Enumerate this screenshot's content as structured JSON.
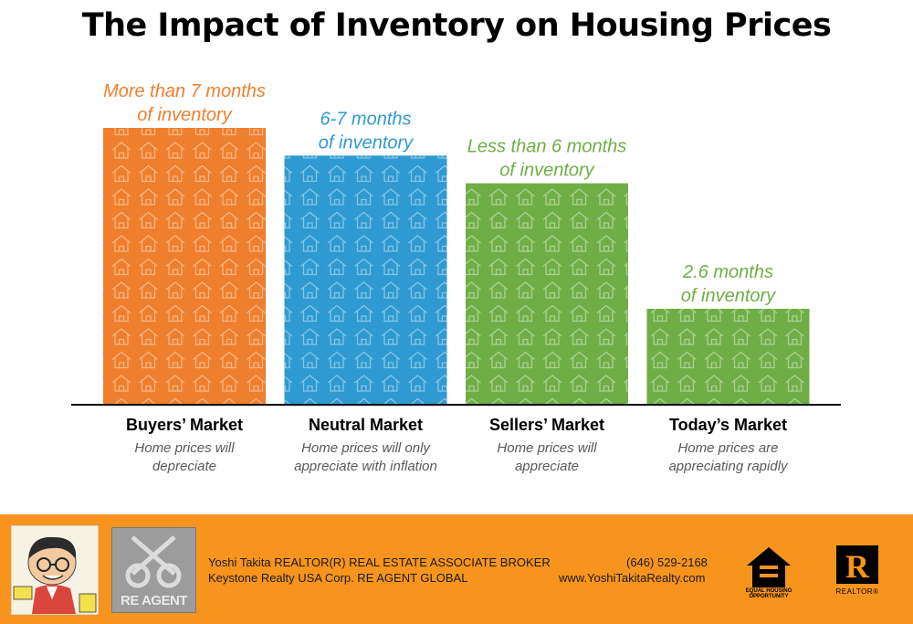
{
  "title": "The Impact of Inventory on Housing Prices",
  "chart_data": {
    "type": "bar",
    "title": "The Impact of Inventory on Housing Prices",
    "categories": [
      "Buyers’ Market",
      "Neutral Market",
      "Sellers’ Market",
      "Today’s Market"
    ],
    "values": [
      7.5,
      6.75,
      6.0,
      2.6
    ],
    "value_unit": "months of inventory",
    "ylim": [
      0,
      7.5
    ],
    "grid": false,
    "bar_labels": [
      [
        "More than 7 months",
        "of inventory"
      ],
      [
        "6-7 months",
        "of inventory"
      ],
      [
        "Less than 6 months",
        "of inventory"
      ],
      [
        "2.6 months",
        "of inventory"
      ]
    ],
    "descriptions": [
      [
        "Home prices will",
        "depreciate"
      ],
      [
        "Home prices will only",
        "appreciate with inflation"
      ],
      [
        "Home prices will",
        "appreciate"
      ],
      [
        "Home prices are",
        "appreciating rapidly"
      ]
    ],
    "colors": [
      "#ef7f2d",
      "#2f9ad2",
      "#6fae45",
      "#6fae45"
    ]
  },
  "footer": {
    "agent_name_line": "Yoshi Takita REALTOR(R) REAL ESTATE ASSOCIATE BROKER",
    "company_line": "Keystone Realty USA Corp.  RE AGENT GLOBAL",
    "phone": "(646) 529-2168",
    "website": "www.YoshiTakitaRealty.com",
    "re_agent_logo": "RE AGENT",
    "equal_housing_text": "EQUAL HOUSING OPPORTUNITY",
    "realtor_text": "REALTOR®",
    "realtor_mark": "R",
    "background_color": "#f7941d"
  }
}
